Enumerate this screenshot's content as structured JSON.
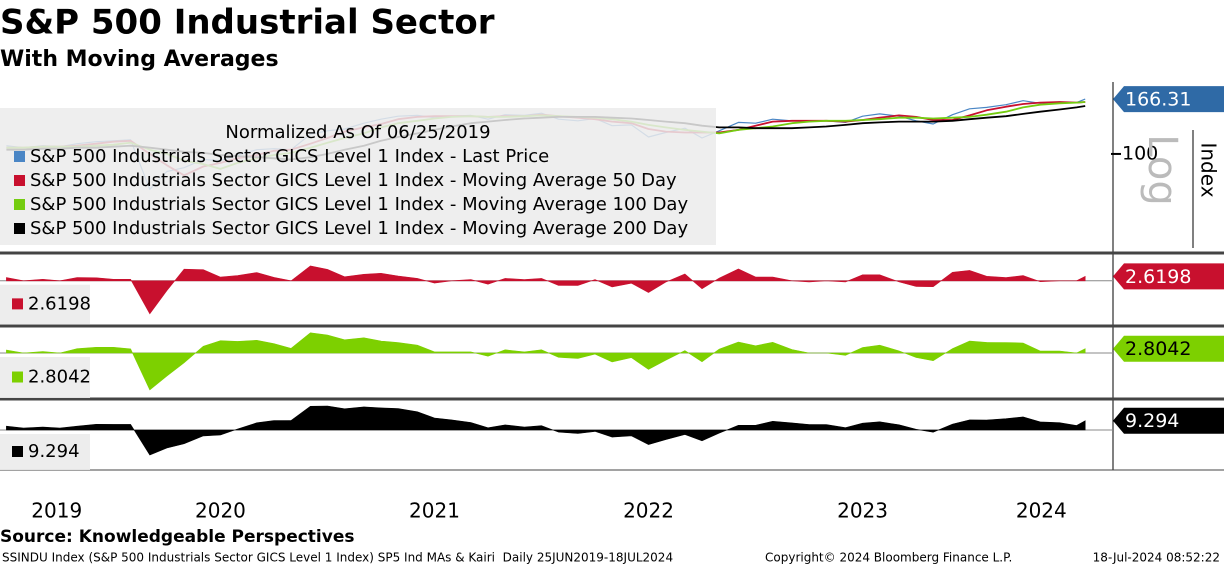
{
  "title": "S&P 500 Industrial Sector",
  "subtitle": "With Moving Averages",
  "chart_data": {
    "type": "line",
    "legend_title": "Normalized As Of 06/25/2019",
    "ylabel": "Index",
    "scale_label": "Log",
    "log_scale": true,
    "x": [
      2019.5,
      2019.58,
      2019.67,
      2019.75,
      2019.83,
      2019.92,
      2020.0,
      2020.08,
      2020.17,
      2020.25,
      2020.33,
      2020.42,
      2020.5,
      2020.58,
      2020.67,
      2020.75,
      2020.83,
      2020.92,
      2021.0,
      2021.08,
      2021.17,
      2021.25,
      2021.33,
      2021.42,
      2021.5,
      2021.58,
      2021.67,
      2021.75,
      2021.83,
      2021.92,
      2022.0,
      2022.08,
      2022.17,
      2022.25,
      2022.33,
      2022.42,
      2022.5,
      2022.58,
      2022.67,
      2022.75,
      2022.83,
      2022.92,
      2023.0,
      2023.08,
      2023.17,
      2023.25,
      2023.33,
      2023.42,
      2023.5,
      2023.58,
      2023.67,
      2023.75,
      2023.83,
      2023.92,
      2024.0,
      2024.08,
      2024.17,
      2024.25,
      2024.33,
      2024.42,
      2024.5,
      2024.54
    ],
    "xlim": [
      2019.47,
      2024.67
    ],
    "xticks": [
      2020,
      2021,
      2022,
      2023,
      2024
    ],
    "year_labels": [
      "2019",
      "2020",
      "2021",
      "2022",
      "2023",
      "2024"
    ],
    "ylim": [
      41,
      195
    ],
    "yticks": [
      100
    ],
    "series": [
      {
        "name": "S&P 500 Industrials Sector GICS Level 1 Index - Last Price",
        "color": "#4a86c5",
        "values": [
          108,
          106,
          108,
          107,
          110,
          112,
          113,
          114,
          72,
          85,
          88,
          95,
          94,
          99,
          104,
          105,
          104,
          120,
          124,
          126,
          133,
          138,
          142,
          143,
          140,
          142,
          143,
          138,
          144,
          143,
          146,
          138,
          136,
          139,
          130,
          131,
          117,
          122,
          127,
          116,
          124,
          134,
          133,
          138,
          136,
          135,
          136,
          134,
          142,
          145,
          142,
          136,
          132,
          144,
          152,
          154,
          158,
          164,
          160,
          162,
          161,
          166.31
        ]
      },
      {
        "name": "S&P 500 Industrials Sector GICS Level 1 Index - Moving Average 50 Day",
        "color": "#c8102e",
        "values": [
          106,
          106,
          107,
          107,
          108,
          110,
          112,
          113,
          100,
          90,
          82,
          89,
          92,
          96,
          99,
          103,
          104,
          110,
          116,
          123,
          128,
          132,
          138,
          141,
          142,
          142,
          142,
          141,
          142,
          142,
          144,
          142,
          140,
          138,
          135,
          133,
          126,
          123,
          122,
          122,
          122,
          125,
          130,
          135,
          136,
          136,
          136,
          135,
          137,
          140,
          143,
          141,
          137,
          137,
          143,
          150,
          155,
          159,
          161,
          162,
          161,
          162
        ]
      },
      {
        "name": "S&P 500 Industrials Sector GICS Level 1 Index - Moving Average 100 Day",
        "color": "#74cc10",
        "values": [
          106,
          106,
          107,
          107,
          107,
          108,
          109,
          111,
          104,
          100,
          94,
          91,
          87,
          92,
          96,
          99,
          101,
          106,
          111,
          116,
          121,
          128,
          133,
          136,
          139,
          141,
          142,
          141,
          141,
          142,
          143,
          142,
          141,
          140,
          138,
          135,
          131,
          128,
          125,
          123,
          121,
          125,
          127,
          129,
          133,
          135,
          136,
          136,
          137,
          138,
          140,
          140,
          139,
          140,
          141,
          144,
          148,
          154,
          158,
          160,
          161,
          162
        ]
      },
      {
        "name": "S&P 500 Industrials Sector GICS Level 1 Index - Moving Average 200 Day",
        "color": "#000000",
        "values": [
          104,
          104,
          105,
          105,
          106,
          106,
          107,
          108,
          106,
          104,
          102,
          101,
          99,
          98,
          97,
          96,
          95,
          97,
          100,
          104,
          108,
          113,
          117,
          121,
          125,
          129,
          133,
          135,
          137,
          139,
          140,
          141,
          141,
          141,
          140,
          139,
          137,
          135,
          133,
          130,
          128,
          128,
          127,
          127,
          127,
          128,
          129,
          131,
          133,
          134,
          135,
          135,
          135,
          136,
          138,
          140,
          142,
          145,
          148,
          151,
          154,
          156
        ]
      }
    ],
    "panels": [
      {
        "type": "area",
        "color": "#c8102e",
        "ylim": [
          -25,
          15
        ],
        "values": [
          1.9,
          0,
          0.9,
          0,
          1.9,
          1.8,
          0.9,
          0.9,
          -20,
          -6,
          7,
          6.7,
          2.2,
          3.1,
          5,
          2,
          0,
          9,
          6.9,
          2.4,
          3.9,
          4.5,
          2.9,
          1.4,
          -1.4,
          0,
          0.7,
          -2.1,
          1.4,
          0.7,
          1.4,
          -2.8,
          -2.9,
          0.7,
          -3.7,
          -1.5,
          -7.1,
          -0.8,
          4.1,
          -4.9,
          1.6,
          7.2,
          2.3,
          2.2,
          0,
          -0.7,
          0,
          -0.7,
          3.6,
          3.6,
          -0.7,
          -3.5,
          -3.6,
          5.1,
          6.3,
          2.7,
          1.9,
          3.1,
          -0.6,
          0,
          0,
          2.6198
        ]
      },
      {
        "type": "area",
        "color": "#7dd000",
        "ylim": [
          -28,
          15
        ],
        "values": [
          1.9,
          0,
          0.9,
          0,
          2.8,
          3.7,
          3.7,
          2.7,
          -24,
          -15,
          -6.4,
          4.4,
          8,
          7.6,
          8.3,
          6.1,
          3,
          13.2,
          11.7,
          8.6,
          9.9,
          7.8,
          6.8,
          5.1,
          0.7,
          0.7,
          0.7,
          -2.1,
          2.1,
          0.7,
          2.1,
          -2.8,
          -3.5,
          -0.7,
          -5.8,
          -3,
          -10.7,
          -4.7,
          1.6,
          -5.7,
          2.5,
          7.2,
          4.7,
          7,
          2.3,
          0,
          0,
          -1.5,
          3.6,
          5.1,
          1.4,
          -2.9,
          -5,
          2.9,
          7.8,
          6.9,
          6.8,
          6.5,
          1.3,
          1.3,
          0,
          2.8042
        ]
      },
      {
        "type": "area",
        "color": "#000000",
        "ylim": [
          -38,
          28
        ],
        "values": [
          3.8,
          1.9,
          2.9,
          1.9,
          3.8,
          5.7,
          5.6,
          5.6,
          -25,
          -18,
          -13.7,
          -5.9,
          -5,
          1,
          7.2,
          9.4,
          9.5,
          23.7,
          24,
          21.2,
          23.1,
          22.1,
          21.4,
          18.2,
          12,
          10.1,
          7.5,
          2.2,
          5.1,
          2.9,
          4.3,
          -2.1,
          -3.5,
          -1.4,
          -7.1,
          -5.8,
          -14.6,
          -9.6,
          -4.5,
          -10.8,
          -3.1,
          4.7,
          4.7,
          8.7,
          7.1,
          5.5,
          5.4,
          2.3,
          6.8,
          8.2,
          5.2,
          0.7,
          -2.2,
          5.9,
          10.1,
          10,
          11.3,
          13.1,
          8.1,
          7.3,
          4.5,
          9.294
        ]
      }
    ]
  },
  "footer": {
    "source": "Source: Knowledgeable Perspectives",
    "info": "SSINDU Index (S&P 500 Industrials Sector GICS Level 1 Index) SP5 Ind MAs & Kairi  Daily 25JUN2019-18JUL2024",
    "copyright": "Copyright© 2024 Bloomberg Finance L.P.",
    "timestamp": "18-Jul-2024 08:52:22"
  }
}
